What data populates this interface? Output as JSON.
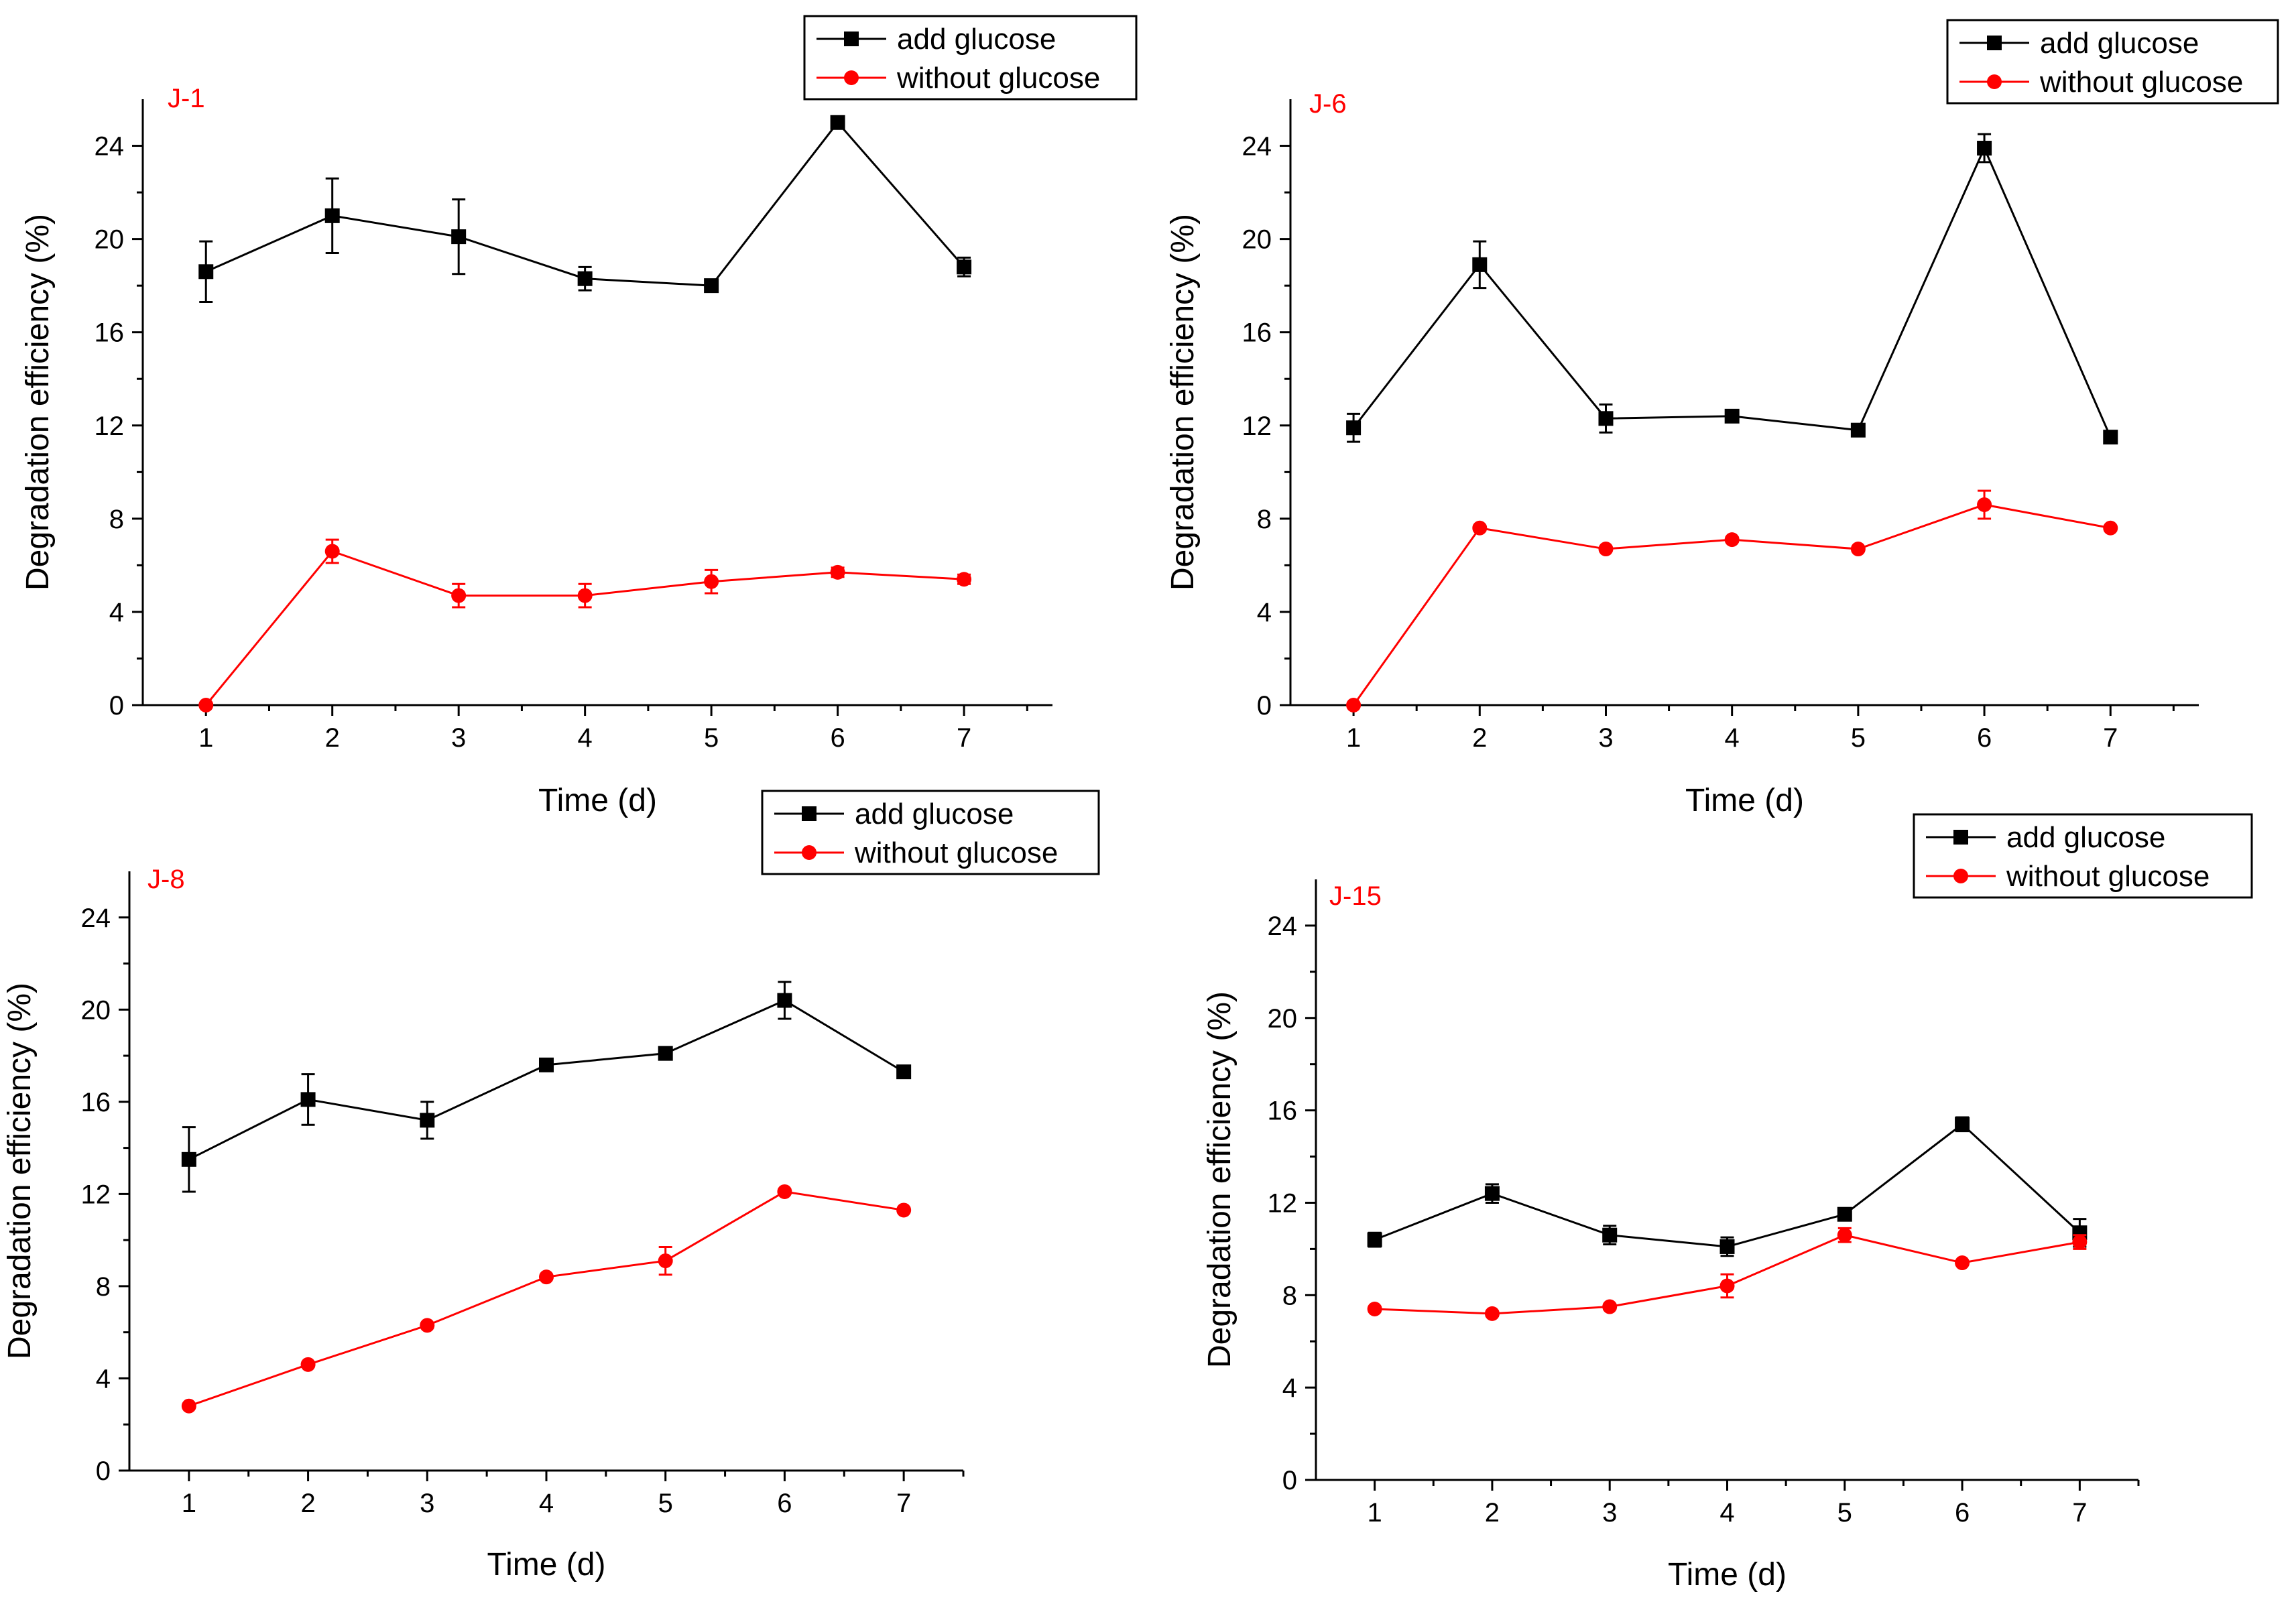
{
  "colors": {
    "add": "#000000",
    "without": "#ff0000",
    "tag": "#ff0000"
  },
  "chart_data": [
    {
      "type": "line",
      "panel": "J-1",
      "title": "J-1",
      "xlabel": "Time (d)",
      "ylabel": "Degradation efficiency (%)",
      "categories": [
        1,
        2,
        3,
        4,
        5,
        6,
        7
      ],
      "xlim": [
        0.5,
        7.7
      ],
      "ylim": [
        0,
        26
      ],
      "yticks": [
        0,
        4,
        8,
        12,
        16,
        20,
        24
      ],
      "series": [
        {
          "name": "add glucose",
          "color": "#000000",
          "marker": "square",
          "values": [
            18.6,
            21.0,
            20.1,
            18.3,
            18.0,
            25.0,
            18.8
          ],
          "errors": [
            1.3,
            1.6,
            1.6,
            0.5,
            0.2,
            0.0,
            0.4
          ]
        },
        {
          "name": "without glucose",
          "color": "#ff0000",
          "marker": "circle",
          "values": [
            0.0,
            6.6,
            4.7,
            4.7,
            5.3,
            5.7,
            5.4
          ],
          "errors": [
            0.0,
            0.5,
            0.5,
            0.5,
            0.5,
            0.2,
            0.2
          ]
        }
      ],
      "legend": [
        "add glucose",
        "without glucose"
      ]
    },
    {
      "type": "line",
      "panel": "J-6",
      "title": "J-6",
      "xlabel": "Time (d)",
      "ylabel": "Degradation efficiency (%)",
      "categories": [
        1,
        2,
        3,
        4,
        5,
        6,
        7
      ],
      "xlim": [
        0.5,
        7.7
      ],
      "ylim": [
        0,
        26
      ],
      "yticks": [
        0,
        4,
        8,
        12,
        16,
        20,
        24
      ],
      "series": [
        {
          "name": "add glucose",
          "color": "#000000",
          "marker": "square",
          "values": [
            11.9,
            18.9,
            12.3,
            12.4,
            11.8,
            23.9,
            11.5
          ],
          "errors": [
            0.6,
            1.0,
            0.6,
            0.1,
            0.1,
            0.6,
            0.2
          ]
        },
        {
          "name": "without glucose",
          "color": "#ff0000",
          "marker": "circle",
          "values": [
            0.0,
            7.6,
            6.7,
            7.1,
            6.7,
            8.6,
            7.6
          ],
          "errors": [
            0.0,
            0.1,
            0.1,
            0.1,
            0.1,
            0.6,
            0.1
          ]
        }
      ],
      "legend": [
        "add glucose",
        "without glucose"
      ]
    },
    {
      "type": "line",
      "panel": "J-8",
      "title": "J-8",
      "xlabel": "Time (d)",
      "ylabel": "Degradation efficiency (%)",
      "categories": [
        1,
        2,
        3,
        4,
        5,
        6,
        7
      ],
      "xlim": [
        0.5,
        7.5
      ],
      "ylim": [
        0,
        26
      ],
      "yticks": [
        0,
        4,
        8,
        12,
        16,
        20,
        24
      ],
      "series": [
        {
          "name": "add glucose",
          "color": "#000000",
          "marker": "square",
          "values": [
            13.5,
            16.1,
            15.2,
            17.6,
            18.1,
            20.4,
            17.3
          ],
          "errors": [
            1.4,
            1.1,
            0.8,
            0.1,
            0.2,
            0.8,
            0.1
          ]
        },
        {
          "name": "without glucose",
          "color": "#ff0000",
          "marker": "circle",
          "values": [
            2.8,
            4.6,
            6.3,
            8.4,
            9.1,
            12.1,
            11.3
          ],
          "errors": [
            0.1,
            0.1,
            0.1,
            0.1,
            0.6,
            0.1,
            0.1
          ]
        }
      ],
      "legend": [
        "add glucose",
        "without glucose"
      ]
    },
    {
      "type": "line",
      "panel": "J-15",
      "title": "J-15",
      "xlabel": "Time (d)",
      "ylabel": "Degradation efficiency (%)",
      "categories": [
        1,
        2,
        3,
        4,
        5,
        6,
        7
      ],
      "xlim": [
        0.5,
        7.5
      ],
      "ylim": [
        0,
        26
      ],
      "yticks": [
        0,
        4,
        8,
        12,
        16,
        20,
        24
      ],
      "series": [
        {
          "name": "add glucose",
          "color": "#000000",
          "marker": "square",
          "values": [
            10.4,
            12.4,
            10.6,
            10.1,
            11.5,
            15.4,
            10.7
          ],
          "errors": [
            0.3,
            0.4,
            0.4,
            0.4,
            0.2,
            0.3,
            0.6
          ]
        },
        {
          "name": "without glucose",
          "color": "#ff0000",
          "marker": "circle",
          "values": [
            7.4,
            7.2,
            7.5,
            8.4,
            10.6,
            9.4,
            10.3
          ],
          "errors": [
            0.1,
            0.1,
            0.1,
            0.5,
            0.3,
            0.1,
            0.3
          ]
        }
      ],
      "legend": [
        "add glucose",
        "without glucose"
      ]
    }
  ]
}
